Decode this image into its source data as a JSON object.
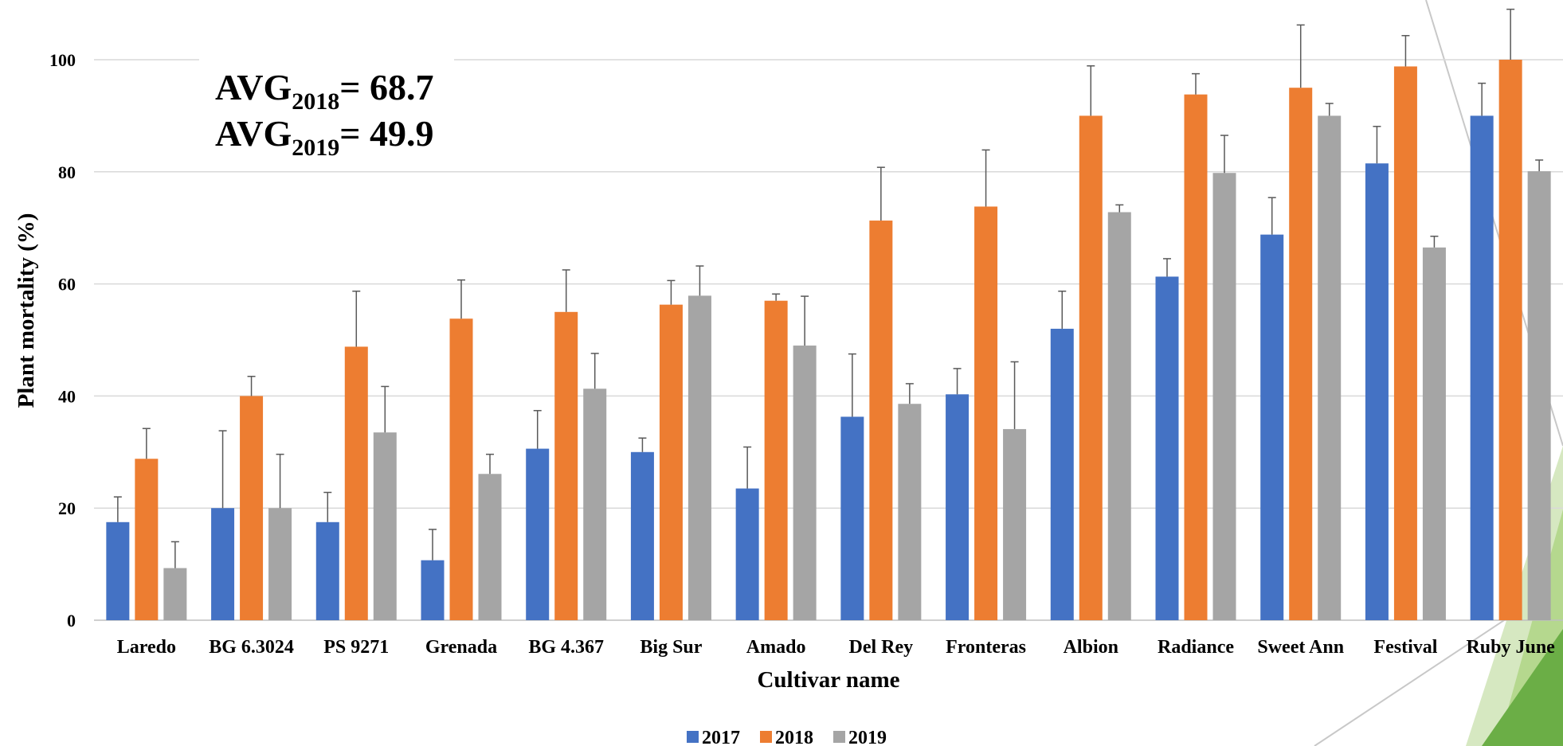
{
  "chart_data": {
    "type": "bar",
    "xlabel": "Cultivar name",
    "ylabel": "Plant mortality (%)",
    "ylim": [
      0,
      100
    ],
    "yticks": [
      0,
      20,
      40,
      60,
      80,
      100
    ],
    "grid": true,
    "legend_position": "bottom",
    "error_bars": true,
    "categories": [
      "Laredo",
      "BG 6.3024",
      "PS 9271",
      "Grenada",
      "BG 4.367",
      "Big Sur",
      "Amado",
      "Del Rey",
      "Fronteras",
      "Albion",
      "Radiance",
      "Sweet Ann",
      "Festival",
      "Ruby June"
    ],
    "series": [
      {
        "name": "2017",
        "color": "#4472C4",
        "values": [
          17.5,
          20,
          17.5,
          10.7,
          30.6,
          30,
          23.5,
          36.3,
          40.3,
          52,
          61.3,
          68.8,
          81.5,
          90
        ],
        "errors": [
          4.5,
          13.8,
          5.3,
          5.5,
          6.8,
          2.5,
          7.4,
          11.2,
          4.6,
          6.7,
          3.2,
          6.6,
          6.6,
          5.8
        ]
      },
      {
        "name": "2018",
        "color": "#ED7D31",
        "values": [
          28.8,
          40,
          48.8,
          53.8,
          55,
          56.3,
          57,
          71.3,
          73.8,
          90,
          93.8,
          95,
          98.8,
          100
        ],
        "errors": [
          5.4,
          3.5,
          9.9,
          6.9,
          7.5,
          4.3,
          1.2,
          9.5,
          10.1,
          8.9,
          3.7,
          11.2,
          5.5,
          9
        ]
      },
      {
        "name": "2019",
        "color": "#A5A5A5",
        "values": [
          9.3,
          20,
          33.5,
          26.1,
          41.3,
          57.9,
          49,
          38.6,
          34.1,
          72.8,
          79.8,
          90,
          66.5,
          80.1
        ],
        "errors": [
          4.7,
          9.6,
          8.2,
          3.5,
          6.3,
          5.3,
          8.8,
          3.6,
          12,
          1.3,
          6.7,
          2.2,
          2,
          2
        ]
      }
    ],
    "annotations": [
      {
        "base": "AVG",
        "sub": "2018",
        "rest": "= 68.7"
      },
      {
        "base": "AVG",
        "sub": "2019",
        "rest": "= 49.9"
      }
    ]
  },
  "decor_colors": {
    "green_light": "#D6E8C1",
    "green_mid": "#B5D88E",
    "green_dark": "#6BAE46",
    "line": "#C8C8C8"
  }
}
